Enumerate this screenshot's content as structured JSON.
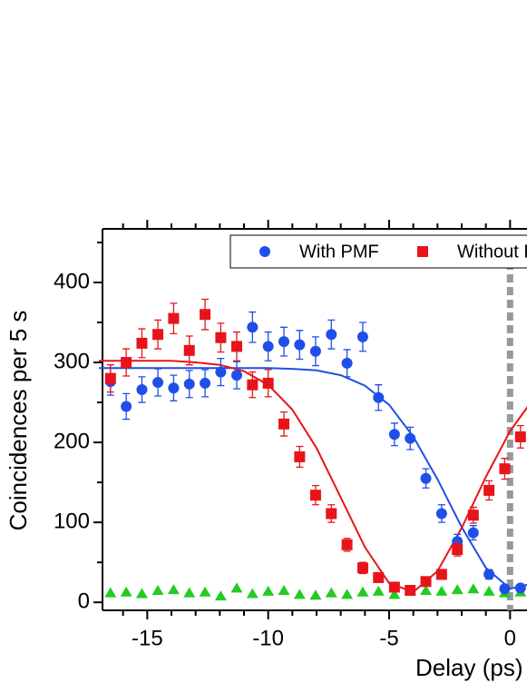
{
  "chart_data": {
    "type": "scatter",
    "x_label": "Delay (ps)",
    "y_label": "Coincidences per 5 s",
    "xlim": [
      -16.85,
      0.7
    ],
    "ylim": [
      -10,
      467
    ],
    "xticks": [
      -15,
      -10,
      -5,
      0
    ],
    "xminorticks": [
      -16,
      -14,
      -13,
      -12,
      -11,
      -9,
      -8,
      -7,
      -6,
      -4,
      -3,
      -2,
      -1
    ],
    "yticks": [
      0,
      100,
      200,
      300,
      400
    ],
    "yminorticks": [
      50,
      150,
      250,
      350,
      450
    ],
    "legend": "upper right",
    "vline": {
      "x": 0,
      "color": "#999999"
    },
    "x": [
      -16.52,
      -15.87,
      -15.22,
      -14.56,
      -13.91,
      -13.26,
      -12.61,
      -11.96,
      -11.3,
      -10.65,
      -10.0,
      -9.35,
      -8.7,
      -8.04,
      -7.39,
      -6.74,
      -6.09,
      -5.44,
      -4.78,
      -4.13,
      -3.48,
      -2.83,
      -2.18,
      -1.52,
      -0.87,
      -0.22,
      0.43
    ],
    "series": [
      {
        "name": "With PMF",
        "color": "#1f4fe8",
        "marker": "circle",
        "values": [
          276,
          245,
          266,
          275,
          268,
          273,
          274,
          288,
          284,
          344,
          320,
          326,
          322,
          314,
          335,
          299,
          332,
          256,
          210,
          205,
          155,
          111,
          76,
          87,
          35,
          17,
          18
        ],
        "errors": [
          17,
          16,
          16,
          17,
          16,
          17,
          17,
          17,
          17,
          19,
          18,
          18,
          18,
          18,
          18,
          17,
          18,
          16,
          14,
          14,
          12,
          11,
          9,
          9,
          6,
          4,
          4
        ]
      },
      {
        "name": "Without PMF",
        "color": "#e8141b",
        "marker": "square",
        "values": [
          280,
          300,
          324,
          335,
          355,
          315,
          360,
          331,
          320,
          272,
          274,
          223,
          182,
          134,
          111,
          72,
          43,
          31,
          19,
          15,
          26,
          35,
          66,
          109,
          140,
          167,
          207
        ],
        "errors": [
          17,
          17,
          18,
          18,
          19,
          18,
          19,
          18,
          18,
          16,
          17,
          15,
          13,
          12,
          11,
          8,
          7,
          6,
          4,
          4,
          5,
          6,
          8,
          10,
          12,
          13,
          14
        ]
      },
      {
        "color": "#22cc22",
        "marker": "triangle",
        "values": [
          12,
          13,
          11,
          15,
          16,
          12,
          13,
          8,
          18,
          11,
          14,
          15,
          10,
          9,
          12,
          10,
          13,
          14,
          10,
          15,
          15,
          14,
          16,
          17,
          14,
          12,
          13
        ]
      }
    ],
    "fits": {
      "x": [
        -17,
        -16,
        -15,
        -14,
        -13,
        -12,
        -11,
        -10,
        -9,
        -8,
        -7,
        -6,
        -5,
        -4,
        -3,
        -2,
        -1,
        0,
        1
      ],
      "series": [
        {
          "color": "#1f4fe8",
          "values": [
            293,
            293,
            293,
            293,
            293,
            293,
            293,
            293,
            292,
            290,
            284,
            271,
            247,
            207,
            154,
            94,
            43,
            17,
            24
          ]
        },
        {
          "color": "#e8141b",
          "values": [
            302,
            302,
            302,
            302,
            300,
            297,
            289,
            272,
            241,
            193,
            131,
            69,
            24,
            13,
            39,
            93,
            157,
            214,
            256
          ]
        }
      ]
    }
  }
}
